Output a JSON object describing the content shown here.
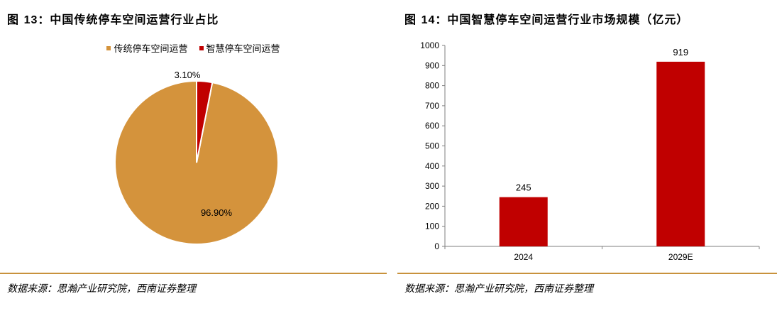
{
  "colors": {
    "traditional": "#D4933C",
    "smart": "#C00000",
    "rule": "#C8923C",
    "axis": "#7f7f7f"
  },
  "left": {
    "title_prefix": "图 ",
    "title_num": "13",
    "title_rest": "：中国传统停车空间运营行业占比",
    "source": "数据来源：思瀚产业研究院，西南证券整理"
  },
  "right": {
    "title_prefix": "图 ",
    "title_num": "14",
    "title_rest": "：中国智慧停车空间运营行业市场规模（亿元）",
    "source": "数据来源：思瀚产业研究院，西南证券整理"
  },
  "chart_data": [
    {
      "type": "pie",
      "title": "中国传统停车空间运营行业占比",
      "legend_position": "top",
      "slices": [
        {
          "name": "传统停车空间运营",
          "value": 96.9,
          "label": "96.90%",
          "color": "#D4933C"
        },
        {
          "name": "智慧停车空间运营",
          "value": 3.1,
          "label": "3.10%",
          "color": "#C00000"
        }
      ]
    },
    {
      "type": "bar",
      "title": "中国智慧停车空间运营行业市场规模（亿元）",
      "categories": [
        "2024",
        "2029E"
      ],
      "values": [
        245,
        919
      ],
      "value_labels": [
        "245",
        "919"
      ],
      "ylim": [
        0,
        1000
      ],
      "yticks": [
        "0",
        "100",
        "200",
        "300",
        "400",
        "500",
        "600",
        "700",
        "800",
        "900",
        "1000"
      ],
      "grid": false,
      "color": "#C00000"
    }
  ]
}
